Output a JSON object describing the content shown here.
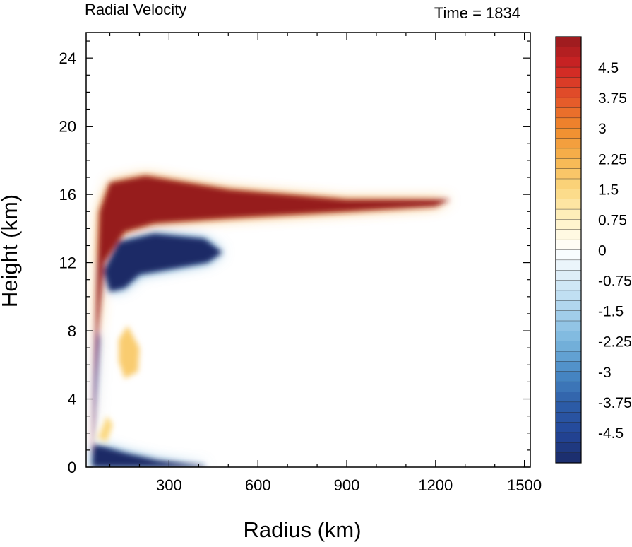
{
  "chart_data": {
    "type": "heatmap",
    "title": "Radial Velocity",
    "time_label": "Time = 1834",
    "xlabel": "Radius (km)",
    "ylabel": "Height (km)",
    "xlim": [
      20,
      1520
    ],
    "ylim": [
      0,
      25.5
    ],
    "x_ticks": [
      300,
      600,
      900,
      1200,
      1500
    ],
    "y_ticks": [
      0,
      4,
      8,
      12,
      16,
      20,
      24
    ],
    "colorbar": {
      "min": -5.25,
      "max": 5.25,
      "step": 0.25,
      "tick_values": [
        4.5,
        3.75,
        3,
        2.25,
        1.5,
        0.75,
        0,
        -0.75,
        -1.5,
        -2.25,
        -3,
        -3.75,
        -4.5
      ],
      "tick_labels": [
        "4.5",
        "3.75",
        "3",
        "2.25",
        "1.5",
        "0.75",
        "0",
        "-0.75",
        "-1.5",
        "-2.25",
        "-3",
        "-3.75",
        "-4.5"
      ]
    },
    "features": [
      {
        "name": "upper-level outflow",
        "sign": "positive",
        "value": 5.25,
        "points": [
          [
            40,
            0.5
          ],
          [
            45,
            4
          ],
          [
            55,
            10
          ],
          [
            65,
            15
          ],
          [
            100,
            16.7
          ],
          [
            220,
            17.1
          ],
          [
            500,
            16.3
          ],
          [
            900,
            15.7
          ],
          [
            1250,
            15.7
          ],
          [
            1200,
            15.3
          ],
          [
            900,
            15
          ],
          [
            500,
            14.6
          ],
          [
            250,
            14.3
          ],
          [
            150,
            13.8
          ],
          [
            80,
            12
          ],
          [
            60,
            8
          ],
          [
            50,
            3
          ],
          [
            40,
            0.5
          ]
        ]
      },
      {
        "name": "mid-level inflow",
        "sign": "negative",
        "value": -5.25,
        "points": [
          [
            80,
            11.5
          ],
          [
            130,
            13.2
          ],
          [
            250,
            13.7
          ],
          [
            420,
            13.4
          ],
          [
            480,
            12.6
          ],
          [
            430,
            12
          ],
          [
            300,
            11.6
          ],
          [
            200,
            11.3
          ],
          [
            150,
            10.5
          ],
          [
            100,
            10.3
          ]
        ]
      },
      {
        "name": "boundary-layer inflow",
        "sign": "negative",
        "value": -5.25,
        "points": [
          [
            40,
            0
          ],
          [
            45,
            1.3
          ],
          [
            80,
            1.2
          ],
          [
            160,
            0.8
          ],
          [
            260,
            0.4
          ],
          [
            360,
            0.2
          ],
          [
            420,
            0.1
          ],
          [
            420,
            0
          ]
        ]
      },
      {
        "name": "low-level eyewall inflow",
        "sign": "negative",
        "value": -4.5,
        "points": [
          [
            45,
            1.5
          ],
          [
            55,
            4.5
          ],
          [
            65,
            7.5
          ],
          [
            60,
            8
          ],
          [
            50,
            5
          ],
          [
            45,
            2
          ]
        ]
      },
      {
        "name": "secondary outflow 1",
        "sign": "positive",
        "value": 1.75,
        "points": [
          [
            130,
            7.5
          ],
          [
            160,
            8.3
          ],
          [
            200,
            7
          ],
          [
            195,
            5.6
          ],
          [
            150,
            5.2
          ],
          [
            130,
            6.2
          ]
        ]
      },
      {
        "name": "secondary outflow 2",
        "sign": "positive",
        "value": 1.5,
        "points": [
          [
            60,
            1.7
          ],
          [
            90,
            3
          ],
          [
            110,
            2.5
          ],
          [
            90,
            1.5
          ]
        ]
      }
    ]
  }
}
